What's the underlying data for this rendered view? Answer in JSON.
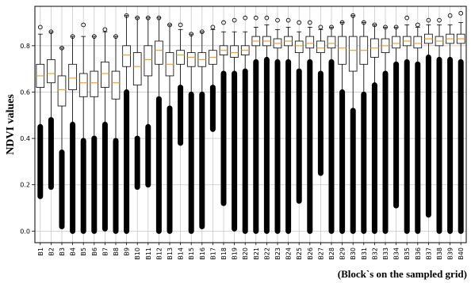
{
  "chart_data": {
    "type": "boxplot",
    "ylabel": "NDVI values",
    "xlabel": "(Block`s on the sampled grid)",
    "ylim": [
      -0.05,
      0.97
    ],
    "yticks": [
      "0.0",
      "0.2",
      "0.4",
      "0.6",
      "0.8"
    ],
    "grid": true,
    "colors": {
      "median": "#f0a030",
      "box": "#000000",
      "grid": "#c8c8c8"
    },
    "categories": [
      "B1",
      "B2",
      "B3",
      "B4",
      "B5",
      "B6",
      "B7",
      "B8",
      "B9",
      "B10",
      "B11",
      "B12",
      "B13",
      "B14",
      "B15",
      "B16",
      "B17",
      "B18",
      "B19",
      "B20",
      "B21",
      "B22",
      "B23",
      "B24",
      "B25",
      "B26",
      "B27",
      "B28",
      "B29",
      "B30",
      "B31",
      "B32",
      "B33",
      "B34",
      "B35",
      "B36",
      "B37",
      "B38",
      "B39",
      "B40"
    ],
    "boxes": [
      {
        "wlo": 0.45,
        "q1": 0.62,
        "med": 0.67,
        "q3": 0.72,
        "whi": 0.85,
        "olo": 0.15,
        "ohi": 0.88
      },
      {
        "wlo": 0.48,
        "q1": 0.64,
        "med": 0.68,
        "q3": 0.74,
        "whi": 0.86,
        "olo": 0.19,
        "ohi": 0.86
      },
      {
        "wlo": 0.34,
        "q1": 0.54,
        "med": 0.61,
        "q3": 0.67,
        "whi": 0.79,
        "olo": 0.02,
        "ohi": 0.79
      },
      {
        "wlo": 0.46,
        "q1": 0.61,
        "med": 0.66,
        "q3": 0.72,
        "whi": 0.84,
        "olo": 0.0,
        "ohi": 0.84
      },
      {
        "wlo": 0.39,
        "q1": 0.58,
        "med": 0.64,
        "q3": 0.68,
        "whi": 0.84,
        "olo": 0.0,
        "ohi": 0.89
      },
      {
        "wlo": 0.4,
        "q1": 0.58,
        "med": 0.64,
        "q3": 0.69,
        "whi": 0.84,
        "olo": 0.0,
        "ohi": 0.84
      },
      {
        "wlo": 0.46,
        "q1": 0.62,
        "med": 0.68,
        "q3": 0.73,
        "whi": 0.86,
        "olo": 0.01,
        "ohi": 0.87
      },
      {
        "wlo": 0.39,
        "q1": 0.57,
        "med": 0.64,
        "q3": 0.69,
        "whi": 0.84,
        "olo": 0.0,
        "ohi": 0.84
      },
      {
        "wlo": 0.6,
        "q1": 0.71,
        "med": 0.76,
        "q3": 0.8,
        "whi": 0.93,
        "olo": 0.0,
        "ohi": 0.93
      },
      {
        "wlo": 0.4,
        "q1": 0.63,
        "med": 0.71,
        "q3": 0.77,
        "whi": 0.92,
        "olo": 0.19,
        "ohi": 0.92
      },
      {
        "wlo": 0.45,
        "q1": 0.67,
        "med": 0.74,
        "q3": 0.8,
        "whi": 0.92,
        "olo": 0.2,
        "ohi": 0.92
      },
      {
        "wlo": 0.57,
        "q1": 0.72,
        "med": 0.78,
        "q3": 0.82,
        "whi": 0.92,
        "olo": 0.0,
        "ohi": 0.92
      },
      {
        "wlo": 0.53,
        "q1": 0.67,
        "med": 0.72,
        "q3": 0.77,
        "whi": 0.89,
        "olo": 0.0,
        "ohi": 0.89
      },
      {
        "wlo": 0.62,
        "q1": 0.72,
        "med": 0.76,
        "q3": 0.78,
        "whi": 0.87,
        "olo": 0.38,
        "ohi": 0.89
      },
      {
        "wlo": 0.59,
        "q1": 0.71,
        "med": 0.75,
        "q3": 0.77,
        "whi": 0.85,
        "olo": 0.0,
        "ohi": 0.85
      },
      {
        "wlo": 0.59,
        "q1": 0.71,
        "med": 0.74,
        "q3": 0.77,
        "whi": 0.86,
        "olo": 0.02,
        "ohi": 0.86
      },
      {
        "wlo": 0.62,
        "q1": 0.72,
        "med": 0.75,
        "q3": 0.78,
        "whi": 0.87,
        "olo": 0.44,
        "ohi": 0.88
      },
      {
        "wlo": 0.68,
        "q1": 0.76,
        "med": 0.78,
        "q3": 0.8,
        "whi": 0.86,
        "olo": 0.12,
        "ohi": 0.9
      },
      {
        "wlo": 0.68,
        "q1": 0.75,
        "med": 0.77,
        "q3": 0.8,
        "whi": 0.86,
        "olo": 0.01,
        "ohi": 0.91
      },
      {
        "wlo": 0.69,
        "q1": 0.76,
        "med": 0.78,
        "q3": 0.8,
        "whi": 0.86,
        "olo": 0.0,
        "ohi": 0.92
      },
      {
        "wlo": 0.73,
        "q1": 0.8,
        "med": 0.82,
        "q3": 0.84,
        "whi": 0.88,
        "olo": 0.0,
        "ohi": 0.92
      },
      {
        "wlo": 0.74,
        "q1": 0.8,
        "med": 0.82,
        "q3": 0.84,
        "whi": 0.89,
        "olo": 0.0,
        "ohi": 0.92
      },
      {
        "wlo": 0.73,
        "q1": 0.79,
        "med": 0.81,
        "q3": 0.83,
        "whi": 0.87,
        "olo": 0.0,
        "ohi": 0.91
      },
      {
        "wlo": 0.73,
        "q1": 0.8,
        "med": 0.82,
        "q3": 0.84,
        "whi": 0.88,
        "olo": 0.0,
        "ohi": 0.91
      },
      {
        "wlo": 0.69,
        "q1": 0.77,
        "med": 0.8,
        "q3": 0.82,
        "whi": 0.86,
        "olo": 0.13,
        "ohi": 0.9
      },
      {
        "wlo": 0.73,
        "q1": 0.79,
        "med": 0.81,
        "q3": 0.84,
        "whi": 0.88,
        "olo": 0.0,
        "ohi": 0.9
      },
      {
        "wlo": 0.68,
        "q1": 0.77,
        "med": 0.79,
        "q3": 0.82,
        "whi": 0.87,
        "olo": 0.25,
        "ohi": 0.88
      },
      {
        "wlo": 0.73,
        "q1": 0.79,
        "med": 0.81,
        "q3": 0.84,
        "whi": 0.88,
        "olo": 0.0,
        "ohi": 0.88
      },
      {
        "wlo": 0.6,
        "q1": 0.72,
        "med": 0.79,
        "q3": 0.84,
        "whi": 0.9,
        "olo": 0.0,
        "ohi": 0.9
      },
      {
        "wlo": 0.52,
        "q1": 0.69,
        "med": 0.78,
        "q3": 0.84,
        "whi": 0.93,
        "olo": 0.0,
        "ohi": 0.93
      },
      {
        "wlo": 0.59,
        "q1": 0.72,
        "med": 0.78,
        "q3": 0.84,
        "whi": 0.9,
        "olo": 0.0,
        "ohi": 0.9
      },
      {
        "wlo": 0.63,
        "q1": 0.75,
        "med": 0.79,
        "q3": 0.83,
        "whi": 0.89,
        "olo": 0.0,
        "ohi": 0.89
      },
      {
        "wlo": 0.68,
        "q1": 0.77,
        "med": 0.8,
        "q3": 0.83,
        "whi": 0.88,
        "olo": 0.0,
        "ohi": 0.88
      },
      {
        "wlo": 0.72,
        "q1": 0.79,
        "med": 0.81,
        "q3": 0.84,
        "whi": 0.88,
        "olo": 0.11,
        "ohi": 0.88
      },
      {
        "wlo": 0.73,
        "q1": 0.8,
        "med": 0.82,
        "q3": 0.84,
        "whi": 0.89,
        "olo": 0.0,
        "ohi": 0.92
      },
      {
        "wlo": 0.72,
        "q1": 0.79,
        "med": 0.81,
        "q3": 0.84,
        "whi": 0.88,
        "olo": 0.0,
        "ohi": 0.89
      },
      {
        "wlo": 0.75,
        "q1": 0.81,
        "med": 0.83,
        "q3": 0.85,
        "whi": 0.89,
        "olo": 0.07,
        "ohi": 0.91
      },
      {
        "wlo": 0.74,
        "q1": 0.8,
        "med": 0.82,
        "q3": 0.84,
        "whi": 0.89,
        "olo": 0.0,
        "ohi": 0.91
      },
      {
        "wlo": 0.74,
        "q1": 0.81,
        "med": 0.83,
        "q3": 0.85,
        "whi": 0.89,
        "olo": 0.0,
        "ohi": 0.93
      },
      {
        "wlo": 0.73,
        "q1": 0.81,
        "med": 0.83,
        "q3": 0.85,
        "whi": 0.9,
        "olo": 0.0,
        "ohi": 0.94
      }
    ]
  }
}
